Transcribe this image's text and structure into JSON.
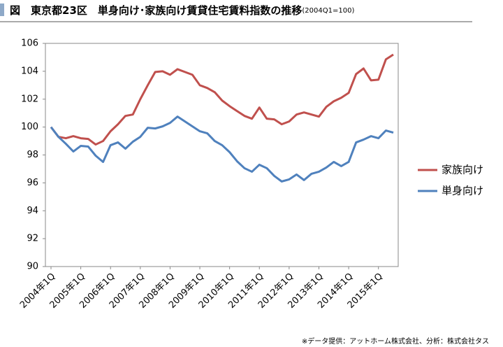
{
  "chart_data": {
    "type": "line",
    "title": "図　東京都23区　単身向け･家族向け賃貸住宅賃料指数の推移",
    "subtitle": "(2004Q1=100)",
    "note": "※データ提供：アットホーム株式会社、分析：株式会社タス",
    "categories": [
      "2004年1Q",
      null,
      null,
      null,
      "2005年1Q",
      null,
      null,
      null,
      "2006年1Q",
      null,
      null,
      null,
      "2007年1Q",
      null,
      null,
      null,
      "2008年1Q",
      null,
      null,
      null,
      "2009年1Q",
      null,
      null,
      null,
      "2010年1Q",
      null,
      null,
      null,
      "2011年1Q",
      null,
      null,
      null,
      "2012年1Q",
      null,
      null,
      null,
      "2013年1Q",
      null,
      null,
      null,
      "2014年1Q",
      null,
      null,
      null,
      "2015年1Q",
      null,
      null
    ],
    "series": [
      {
        "name": "家族向け",
        "color": "#c0504d",
        "values": [
          100.0,
          99.3,
          99.2,
          99.35,
          99.2,
          99.15,
          98.75,
          99.0,
          99.7,
          100.2,
          100.8,
          100.9,
          102.0,
          103.0,
          103.95,
          104.0,
          103.75,
          104.15,
          103.95,
          103.75,
          103.0,
          102.8,
          102.5,
          101.9,
          101.5,
          101.15,
          100.8,
          100.6,
          101.4,
          100.6,
          100.55,
          100.2,
          100.4,
          100.9,
          101.05,
          100.9,
          100.75,
          101.45,
          101.85,
          102.1,
          102.45,
          103.8,
          104.2,
          103.35,
          103.4,
          104.85,
          105.2
        ]
      },
      {
        "name": "単身向け",
        "color": "#4f81bd",
        "values": [
          100.0,
          99.3,
          98.8,
          98.25,
          98.65,
          98.6,
          97.95,
          97.5,
          98.7,
          98.9,
          98.45,
          98.95,
          99.3,
          99.95,
          99.9,
          100.05,
          100.3,
          100.75,
          100.4,
          100.05,
          99.7,
          99.55,
          99.0,
          98.7,
          98.2,
          97.55,
          97.05,
          96.8,
          97.3,
          97.05,
          96.5,
          96.1,
          96.25,
          96.6,
          96.2,
          96.65,
          96.8,
          97.1,
          97.5,
          97.2,
          97.5,
          98.9,
          99.1,
          99.35,
          99.2,
          99.75,
          99.6
        ]
      }
    ],
    "ylim": [
      90,
      106
    ],
    "yticks": [
      90,
      92,
      94,
      96,
      98,
      100,
      102,
      104,
      106
    ],
    "grid": false,
    "legend": "right"
  }
}
